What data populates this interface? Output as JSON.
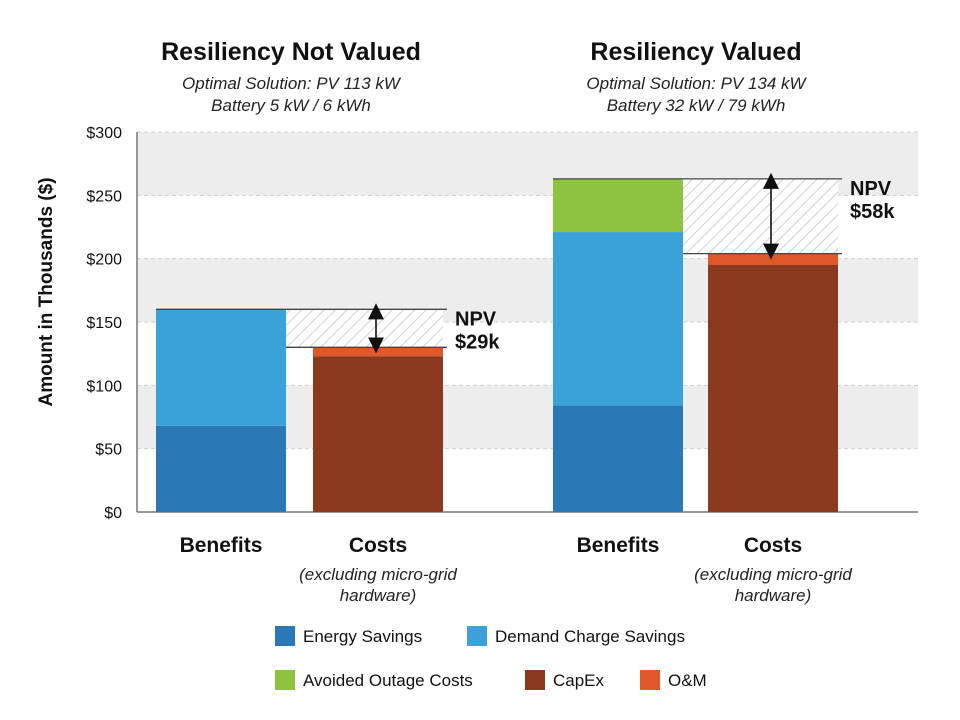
{
  "chart_data": {
    "type": "bar",
    "stacked": true,
    "ylabel": "Amount in Thousands ($)",
    "ylim": [
      0,
      300
    ],
    "yticks": [
      0,
      50,
      100,
      150,
      200,
      250,
      300
    ],
    "ytick_labels": [
      "$0",
      "$50",
      "$100",
      "$150",
      "$200",
      "$250",
      "$300"
    ],
    "grid": "alternating shaded bands",
    "legend_position": "bottom",
    "legend": [
      {
        "name": "Energy Savings",
        "color": "#2a79b6"
      },
      {
        "name": "Demand Charge Savings",
        "color": "#3aa2d8"
      },
      {
        "name": "Avoided Outage Costs",
        "color": "#8dc43f"
      },
      {
        "name": "CapEx",
        "color": "#8b3a1f"
      },
      {
        "name": "O&M",
        "color": "#e0572a"
      }
    ],
    "panels": [
      {
        "title": "Resiliency Not Valued",
        "subtitle": [
          "Optimal Solution: PV 113 kW",
          "Battery 5 kW / 6 kWh"
        ],
        "bars": [
          {
            "label": "Benefits",
            "note": [],
            "segments": [
              {
                "series": "Energy Savings",
                "value": 68
              },
              {
                "series": "Demand Charge Savings",
                "value": 92
              }
            ]
          },
          {
            "label": "Costs",
            "note": [
              "(excluding micro-grid",
              "hardware)"
            ],
            "segments": [
              {
                "series": "CapEx",
                "value": 123
              },
              {
                "series": "O&M",
                "value": 7
              }
            ]
          }
        ],
        "npv": {
          "label": "NPV",
          "value_label": "$29k",
          "top": 160,
          "bottom": 130
        }
      },
      {
        "title": "Resiliency Valued",
        "subtitle": [
          "Optimal Solution: PV 134 kW",
          "Battery 32 kW / 79 kWh"
        ],
        "bars": [
          {
            "label": "Benefits",
            "note": [],
            "segments": [
              {
                "series": "Energy Savings",
                "value": 84
              },
              {
                "series": "Demand Charge Savings",
                "value": 137
              },
              {
                "series": "Avoided Outage Costs",
                "value": 42
              }
            ]
          },
          {
            "label": "Costs",
            "note": [
              "(excluding micro-grid",
              "hardware)"
            ],
            "segments": [
              {
                "series": "CapEx",
                "value": 195
              },
              {
                "series": "O&M",
                "value": 9
              }
            ]
          }
        ],
        "npv": {
          "label": "NPV",
          "value_label": "$58k",
          "top": 263,
          "bottom": 204
        }
      }
    ]
  }
}
